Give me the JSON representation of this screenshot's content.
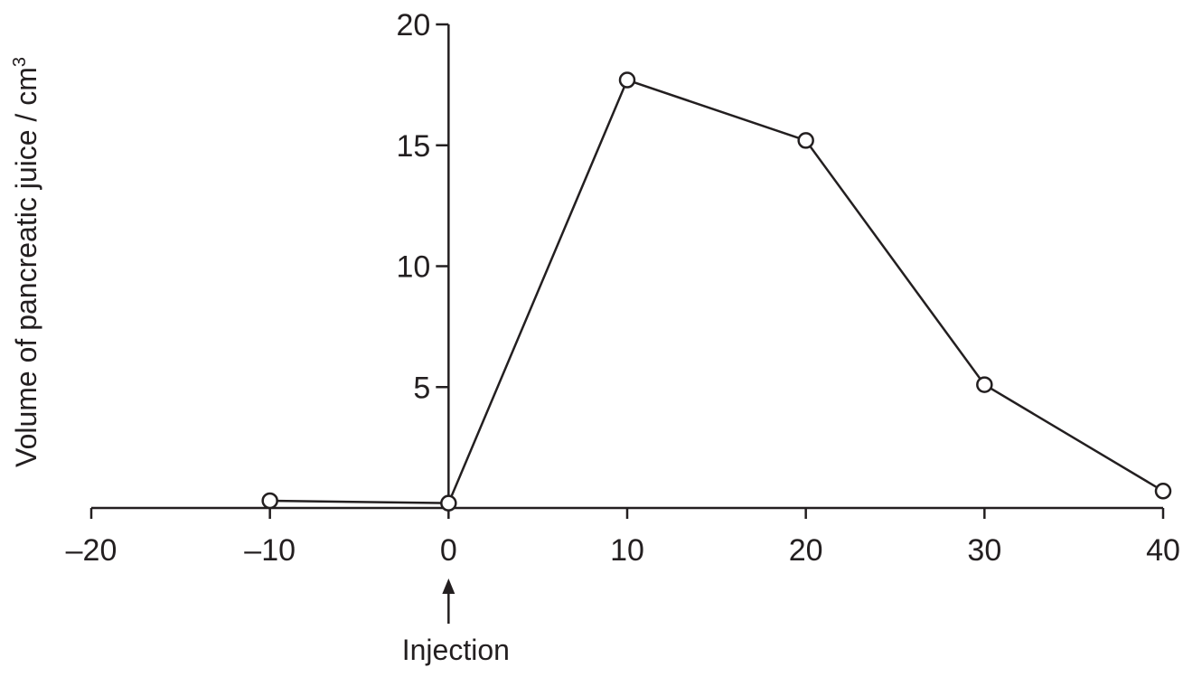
{
  "chart_data": {
    "type": "line",
    "title": "",
    "xlabel": "",
    "ylabel": "Volume of pancreatic juice / cm",
    "ylabel_superscript": "3",
    "x": [
      -10,
      0,
      10,
      20,
      30,
      40
    ],
    "y": [
      0.3,
      0.2,
      17.7,
      15.2,
      5.1,
      0.7
    ],
    "xlim": [
      -20,
      40
    ],
    "ylim": [
      0,
      20
    ],
    "x_ticks": [
      -20,
      -10,
      0,
      10,
      20,
      30,
      40
    ],
    "x_tick_labels": [
      "–20",
      "–10",
      "0",
      "10",
      "20",
      "30",
      "40"
    ],
    "y_ticks": [
      5,
      10,
      15,
      20
    ],
    "y_tick_labels": [
      "5",
      "10",
      "15",
      "20"
    ],
    "marker": "open-circle",
    "grid": false,
    "line_color": "#231f20",
    "annotation": {
      "text": "Injection",
      "x": 0
    }
  }
}
